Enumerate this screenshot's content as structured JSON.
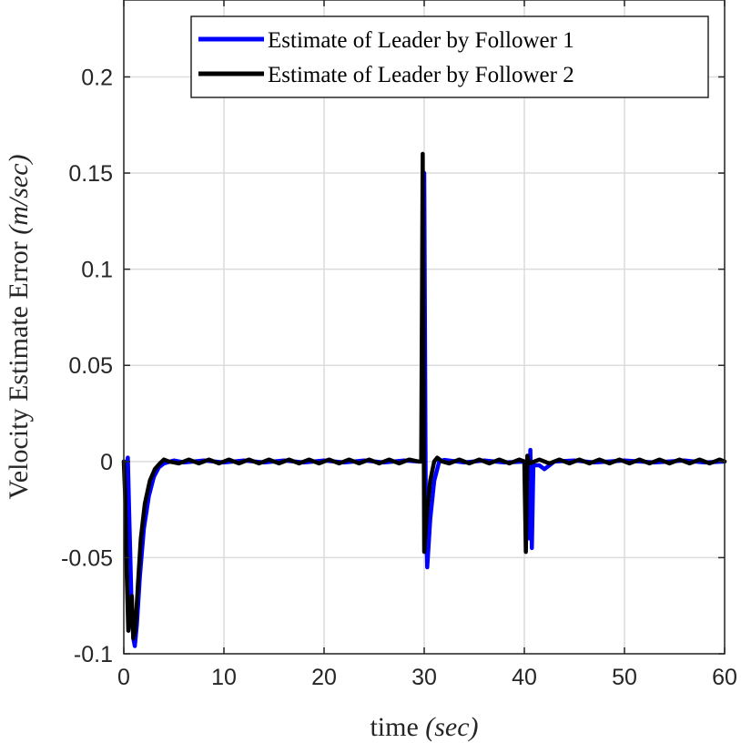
{
  "chart_data": {
    "type": "line",
    "xlabel_text": "time ",
    "xlabel_unit": "(sec)",
    "ylabel_text": "Velocity Estimate Error ",
    "ylabel_unit": "(m/sec)",
    "xlim": [
      0,
      60
    ],
    "ylim": [
      -0.1,
      0.24
    ],
    "grid": true,
    "legend_position": "top-right",
    "x_ticks": [
      0,
      10,
      20,
      30,
      40,
      50,
      60
    ],
    "x_tick_labels": [
      "0",
      "10",
      "20",
      "30",
      "40",
      "50",
      "60"
    ],
    "y_ticks": [
      -0.1,
      -0.05,
      0,
      0.05,
      0.1,
      0.15,
      0.2
    ],
    "y_tick_labels": [
      "-0.1",
      "-0.05",
      "0",
      "0.05",
      "0.1",
      "0.15",
      "0.2"
    ],
    "series": [
      {
        "name": "Estimate of Leader by Follower 1",
        "color": "#0000ff",
        "points": [
          [
            0,
            0
          ],
          [
            0.2,
            -0.005
          ],
          [
            0.4,
            0.002
          ],
          [
            0.55,
            -0.03
          ],
          [
            0.75,
            -0.07
          ],
          [
            0.95,
            -0.092
          ],
          [
            1.1,
            -0.096
          ],
          [
            1.3,
            -0.085
          ],
          [
            1.6,
            -0.06
          ],
          [
            2.0,
            -0.035
          ],
          [
            2.5,
            -0.018
          ],
          [
            3.0,
            -0.008
          ],
          [
            3.5,
            -0.003
          ],
          [
            4.0,
            -0.001
          ],
          [
            5,
            0.0005
          ],
          [
            6,
            -0.0005
          ],
          [
            8,
            0.0005
          ],
          [
            10,
            -0.0005
          ],
          [
            12,
            0.0005
          ],
          [
            14,
            -0.0005
          ],
          [
            16,
            0.0005
          ],
          [
            18,
            -0.0005
          ],
          [
            20,
            0.0005
          ],
          [
            22,
            -0.0005
          ],
          [
            24,
            0.0005
          ],
          [
            26,
            -0.0005
          ],
          [
            28,
            0.0005
          ],
          [
            29.5,
            0
          ],
          [
            29.8,
            0.0
          ],
          [
            30.0,
            0.15
          ],
          [
            30.15,
            -0.02
          ],
          [
            30.3,
            -0.055
          ],
          [
            30.6,
            -0.03
          ],
          [
            31.0,
            -0.01
          ],
          [
            31.5,
            0.0
          ],
          [
            32,
            0.0008
          ],
          [
            34,
            -0.0005
          ],
          [
            36,
            0.0005
          ],
          [
            38,
            -0.0005
          ],
          [
            40.2,
            0
          ],
          [
            40.45,
            -0.04
          ],
          [
            40.6,
            0.006
          ],
          [
            40.75,
            -0.045
          ],
          [
            40.9,
            -0.002
          ],
          [
            41.5,
            -0.002
          ],
          [
            42.0,
            -0.004
          ],
          [
            42.5,
            -0.002
          ],
          [
            43,
            0
          ],
          [
            45,
            0.0005
          ],
          [
            47,
            -0.0005
          ],
          [
            50,
            0.0005
          ],
          [
            53,
            -0.0005
          ],
          [
            56,
            0.0005
          ],
          [
            58,
            -0.0005
          ],
          [
            60,
            0
          ]
        ]
      },
      {
        "name": "Estimate of Leader by Follower 2",
        "color": "#000000",
        "points": [
          [
            0,
            0
          ],
          [
            0.15,
            -0.02
          ],
          [
            0.3,
            -0.06
          ],
          [
            0.45,
            -0.088
          ],
          [
            0.6,
            -0.082
          ],
          [
            0.8,
            -0.07
          ],
          [
            0.95,
            -0.092
          ],
          [
            1.15,
            -0.088
          ],
          [
            1.4,
            -0.065
          ],
          [
            1.7,
            -0.04
          ],
          [
            2.1,
            -0.022
          ],
          [
            2.6,
            -0.01
          ],
          [
            3.1,
            -0.004
          ],
          [
            3.6,
            -0.001
          ],
          [
            4.0,
            0.001
          ],
          [
            4.5,
            0
          ],
          [
            5.5,
            -0.001
          ],
          [
            6.5,
            0.001
          ],
          [
            7.5,
            -0.001
          ],
          [
            8.5,
            0.001
          ],
          [
            9.5,
            -0.001
          ],
          [
            10.5,
            0.001
          ],
          [
            11.5,
            -0.001
          ],
          [
            12.5,
            0.001
          ],
          [
            13.5,
            -0.001
          ],
          [
            14.5,
            0.001
          ],
          [
            15.5,
            -0.001
          ],
          [
            16.5,
            0.001
          ],
          [
            17.5,
            -0.001
          ],
          [
            18.5,
            0.001
          ],
          [
            19.5,
            -0.001
          ],
          [
            20.5,
            0.001
          ],
          [
            21.5,
            -0.001
          ],
          [
            22.5,
            0.001
          ],
          [
            23.5,
            -0.001
          ],
          [
            24.5,
            0.001
          ],
          [
            25.5,
            -0.001
          ],
          [
            26.5,
            0.001
          ],
          [
            27.5,
            -0.001
          ],
          [
            28.5,
            0.001
          ],
          [
            29.4,
            0
          ],
          [
            29.7,
            0.0
          ],
          [
            29.85,
            0.16
          ],
          [
            30.0,
            -0.047
          ],
          [
            30.3,
            -0.025
          ],
          [
            30.6,
            -0.01
          ],
          [
            31.0,
            0.0
          ],
          [
            31.3,
            0.002
          ],
          [
            31.8,
            0.0
          ],
          [
            32.5,
            -0.001
          ],
          [
            33.5,
            0.001
          ],
          [
            34.5,
            -0.001
          ],
          [
            35.5,
            0.001
          ],
          [
            36.5,
            -0.001
          ],
          [
            37.5,
            0.001
          ],
          [
            38.5,
            -0.001
          ],
          [
            39.5,
            0.001
          ],
          [
            40.0,
            0
          ],
          [
            40.15,
            -0.047
          ],
          [
            40.3,
            0.003
          ],
          [
            40.5,
            -0.001
          ],
          [
            41.5,
            0.001
          ],
          [
            42.5,
            -0.001
          ],
          [
            43.5,
            0.001
          ],
          [
            44.5,
            -0.001
          ],
          [
            45.5,
            0.001
          ],
          [
            46.5,
            -0.001
          ],
          [
            47.5,
            0.001
          ],
          [
            48.5,
            -0.001
          ],
          [
            49.5,
            0.001
          ],
          [
            50.5,
            -0.001
          ],
          [
            51.5,
            0.001
          ],
          [
            52.5,
            -0.001
          ],
          [
            53.5,
            0.001
          ],
          [
            54.5,
            -0.001
          ],
          [
            55.5,
            0.001
          ],
          [
            56.5,
            -0.001
          ],
          [
            57.5,
            0.001
          ],
          [
            58.5,
            -0.001
          ],
          [
            59.5,
            0.001
          ],
          [
            60,
            0
          ]
        ]
      }
    ]
  }
}
